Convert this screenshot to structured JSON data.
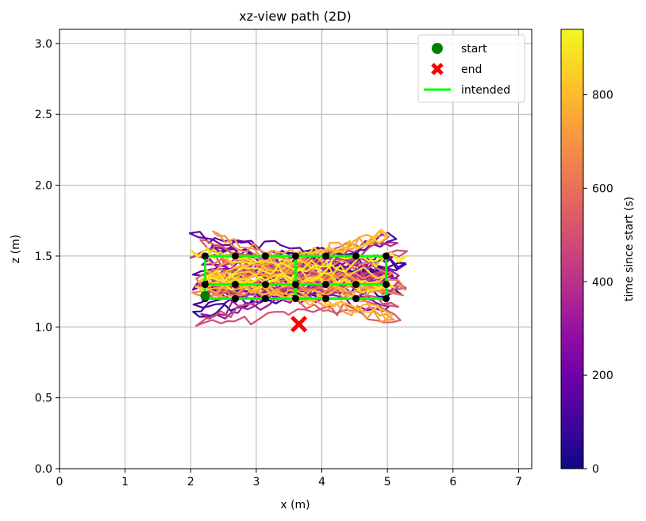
{
  "chart_data": {
    "type": "line",
    "title": "xz-view path (2D)",
    "xlabel": "x (m)",
    "ylabel": "z (m)",
    "xlim": [
      0,
      7.2
    ],
    "ylim": [
      0,
      3.1
    ],
    "xticks": [
      "0",
      "1",
      "2",
      "3",
      "4",
      "5",
      "6",
      "7"
    ],
    "yticks": [
      "0.0",
      "0.5",
      "1.0",
      "1.5",
      "2.0",
      "2.5",
      "3.0"
    ],
    "grid": true,
    "legend": {
      "placement": "top-right",
      "entries": [
        {
          "label": "start",
          "marker": "circle",
          "color": "#008000"
        },
        {
          "label": "end",
          "marker": "x-filled",
          "color": "#ff0000"
        },
        {
          "label": "intended",
          "marker": "line",
          "color": "#00ff00"
        }
      ]
    },
    "colorbar": {
      "label": "time since start (s)",
      "colormap": "plasma",
      "range": [
        0,
        940
      ],
      "ticks": [
        "0",
        "200",
        "400",
        "600",
        "800"
      ]
    },
    "start_point": {
      "x": 2.22,
      "z": 1.22
    },
    "end_point": {
      "x": 3.65,
      "z": 1.02
    },
    "intended_path": {
      "color": "#00ff00",
      "waypoints": [
        {
          "x": 2.22,
          "z": 1.2
        },
        {
          "x": 2.68,
          "z": 1.2
        },
        {
          "x": 3.14,
          "z": 1.2
        },
        {
          "x": 3.6,
          "z": 1.2
        },
        {
          "x": 4.06,
          "z": 1.2
        },
        {
          "x": 4.52,
          "z": 1.2
        },
        {
          "x": 4.98,
          "z": 1.2
        },
        {
          "x": 2.22,
          "z": 1.3
        },
        {
          "x": 2.68,
          "z": 1.3
        },
        {
          "x": 3.14,
          "z": 1.3
        },
        {
          "x": 3.6,
          "z": 1.3
        },
        {
          "x": 4.06,
          "z": 1.3
        },
        {
          "x": 4.52,
          "z": 1.3
        },
        {
          "x": 4.98,
          "z": 1.3
        },
        {
          "x": 2.22,
          "z": 1.5
        },
        {
          "x": 2.68,
          "z": 1.5
        },
        {
          "x": 3.14,
          "z": 1.5
        },
        {
          "x": 3.6,
          "z": 1.5
        },
        {
          "x": 4.06,
          "z": 1.5
        },
        {
          "x": 4.52,
          "z": 1.5
        },
        {
          "x": 4.98,
          "z": 1.5
        }
      ]
    },
    "trajectory": {
      "x_range": [
        1.85,
        5.3
      ],
      "z_range": [
        0.78,
        1.97
      ],
      "time_range": [
        0,
        940
      ]
    }
  },
  "colors": {
    "grid": "#b0b0b0",
    "waypoint": "#000000"
  }
}
